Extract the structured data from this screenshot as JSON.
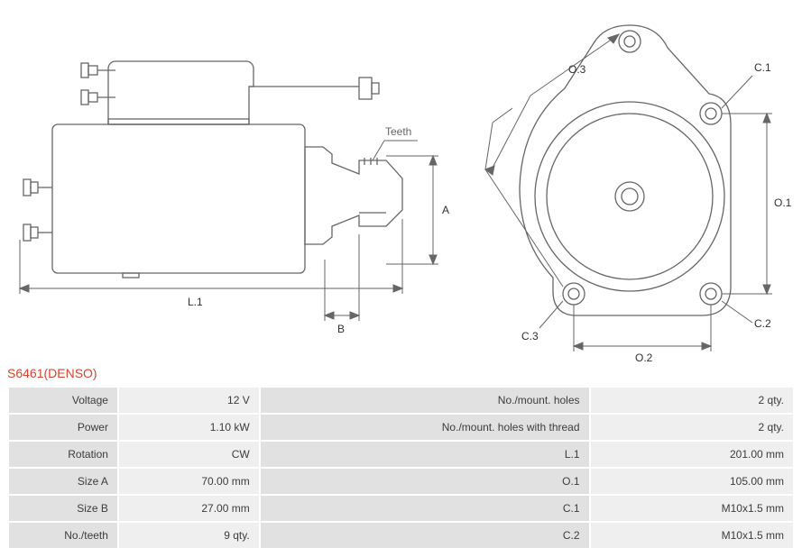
{
  "title": "S6461(DENSO)",
  "colors": {
    "stroke": "#666666",
    "label": "#303030",
    "teeth_label": "#676767",
    "title": "#d8432e",
    "row_bg": "#efefef",
    "label_bg": "#e1e1e1",
    "border": "#ffffff",
    "page_bg": "#ffffff"
  },
  "diagram": {
    "side_view": {
      "dims": [
        "L.1",
        "A",
        "B"
      ],
      "callouts": [
        "Teeth"
      ]
    },
    "front_view": {
      "dims": [
        "O.1",
        "O.2",
        "O.3"
      ],
      "holes": [
        "C.1",
        "C.2",
        "C.3"
      ]
    }
  },
  "specs_left": [
    {
      "label": "Voltage",
      "value": "12 V"
    },
    {
      "label": "Power",
      "value": "1.10 kW"
    },
    {
      "label": "Rotation",
      "value": "CW"
    },
    {
      "label": "Size A",
      "value": "70.00 mm"
    },
    {
      "label": "Size B",
      "value": "27.00 mm"
    },
    {
      "label": "No./teeth",
      "value": "9 qty."
    }
  ],
  "specs_right": [
    {
      "label": "No./mount. holes",
      "value": "2 qty."
    },
    {
      "label": "No./mount. holes with thread",
      "value": "2 qty."
    },
    {
      "label": "L.1",
      "value": "201.00 mm"
    },
    {
      "label": "O.1",
      "value": "105.00 mm"
    },
    {
      "label": "C.1",
      "value": "M10x1.5 mm"
    },
    {
      "label": "C.2",
      "value": "M10x1.5 mm"
    }
  ]
}
